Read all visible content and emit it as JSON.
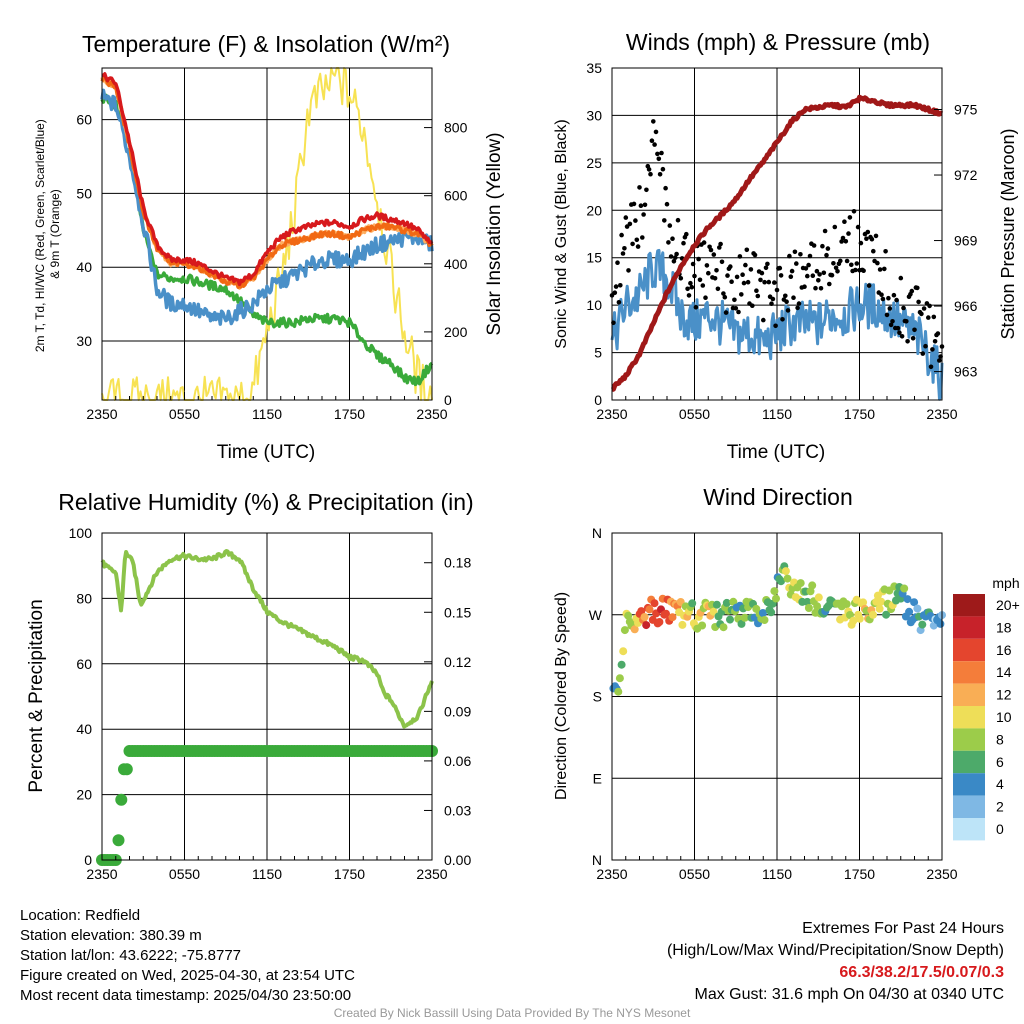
{
  "colors": {
    "temp": "#d7191c",
    "dewpoint": "#3aaa3a",
    "heat_index": "#f16913",
    "nine_m": "#fdae61",
    "windchill": "#4a90c8",
    "solar": "#f7e253",
    "wind": "#4a90c8",
    "gust": "#000000",
    "pressure": "#a01818",
    "rh": "#8cc34a",
    "precip": "#3aaa3a"
  },
  "chart_data": [
    {
      "type": "line",
      "title": "Temperature (F) & Insolation (W/m²)",
      "xlabel": "Time (UTC)",
      "ylabel": "2m T, Td, HI/WC (Red, Green, Scarlet/Blue) & 9m T (Orange)",
      "ylabel_line1": "2m T, Td, HI/WC (Red, Green, Scarlet/Blue)",
      "ylabel_line2": "& 9m T (Orange)",
      "y2label": "Solar Insolation (Yellow)",
      "x_ticks": [
        "2350",
        "0550",
        "1150",
        "1750",
        "2350"
      ],
      "y_ticks": [
        "30",
        "40",
        "50",
        "60"
      ],
      "y2_ticks": [
        "0",
        "200",
        "400",
        "600",
        "800"
      ],
      "ylim": [
        22,
        67
      ],
      "y2lim": [
        0,
        975
      ],
      "x_hours": [
        0,
        1,
        2,
        3,
        4,
        5,
        6,
        7,
        8,
        9,
        10,
        11,
        12,
        13,
        14,
        15,
        16,
        17,
        18,
        19,
        20,
        21,
        22,
        23,
        24
      ],
      "series": [
        {
          "key": "temp",
          "values": [
            66,
            65,
            57,
            48,
            43,
            41,
            41,
            40.5,
            39.5,
            38.5,
            38,
            39,
            42,
            44,
            45,
            45.5,
            46,
            46,
            45.5,
            46.5,
            47,
            46.5,
            46,
            45,
            43
          ]
        },
        {
          "key": "heat_index",
          "values": [
            65.5,
            64.5,
            56.5,
            47.5,
            42.5,
            40.5,
            40.5,
            40,
            39,
            38,
            37.5,
            38.5,
            41,
            43,
            43.5,
            44,
            44.5,
            44.5,
            44,
            45,
            45.5,
            45.5,
            45,
            44.5,
            43
          ]
        },
        {
          "key": "nine_m",
          "values": [
            65.5,
            64.5,
            56.5,
            47.5,
            42.5,
            40.5,
            40.5,
            40,
            39,
            38,
            37.5,
            38.5,
            41,
            43,
            43.5,
            44,
            44.5,
            44.5,
            44,
            45,
            45.5,
            45.5,
            45,
            44.5,
            43
          ]
        },
        {
          "key": "windchill",
          "values": [
            63,
            62,
            55,
            46,
            37,
            35,
            35,
            34,
            33,
            33,
            34,
            35,
            37,
            38,
            39,
            40,
            41,
            41,
            41,
            42,
            43,
            43.5,
            44,
            44,
            43
          ]
        },
        {
          "key": "dewpoint",
          "values": [
            63,
            62,
            57,
            45,
            39,
            38.5,
            38.5,
            38,
            37.5,
            37,
            35.5,
            33.5,
            32.5,
            32.5,
            32.5,
            33,
            33,
            33,
            32.5,
            30,
            28,
            27,
            25,
            24.5,
            27
          ]
        },
        {
          "key": "solar",
          "axis": "y2",
          "values": [
            0,
            0,
            0,
            0,
            0,
            0,
            0,
            0,
            0,
            0,
            0,
            30,
            200,
            350,
            550,
            850,
            900,
            950,
            900,
            800,
            600,
            380,
            200,
            60,
            10
          ]
        }
      ]
    },
    {
      "type": "line",
      "title": "Winds (mph) & Pressure (mb)",
      "xlabel": "Time (UTC)",
      "ylabel": "Sonic Wind & Gust (Blue, Black)",
      "y2label": "Station Pressure (Maroon)",
      "x_ticks": [
        "2350",
        "0550",
        "1150",
        "1750",
        "2350"
      ],
      "y_ticks": [
        "0",
        "5",
        "10",
        "15",
        "20",
        "25",
        "30",
        "35"
      ],
      "y2_ticks": [
        "963",
        "966",
        "969",
        "972",
        "975"
      ],
      "ylim": [
        0,
        35
      ],
      "y2lim": [
        961.7,
        976.9
      ],
      "x_hours": [
        0,
        1,
        2,
        3,
        4,
        5,
        6,
        7,
        8,
        9,
        10,
        11,
        12,
        13,
        14,
        15,
        16,
        17,
        18,
        19,
        20,
        21,
        22,
        23,
        24
      ],
      "series": [
        {
          "key": "wind",
          "name": "Sonic Wind",
          "values": [
            6,
            10,
            11,
            14,
            13,
            9,
            8,
            9,
            8,
            7,
            7,
            6,
            7,
            8,
            8,
            8,
            9,
            9,
            10,
            10,
            9,
            8,
            7,
            5,
            2
          ]
        },
        {
          "key": "gust",
          "name": "Gust",
          "values": [
            11,
            16,
            19,
            27,
            20,
            15,
            13,
            14,
            13,
            12,
            13,
            11,
            11,
            12,
            13,
            14,
            16,
            17,
            16,
            15,
            12,
            10,
            9,
            7,
            4
          ]
        },
        {
          "key": "pressure",
          "axis": "y2",
          "values": [
            962.2,
            962.8,
            963.8,
            965.2,
            966.6,
            967.8,
            968.8,
            969.6,
            970.2,
            970.9,
            971.8,
            972.6,
            973.5,
            974.4,
            975,
            975.1,
            975.2,
            975.1,
            975.5,
            975.4,
            975.2,
            975.2,
            975.2,
            975.0,
            974.8
          ]
        }
      ]
    },
    {
      "type": "line",
      "title": "Relative Humidity (%) & Precipitation (in)",
      "xlabel": "",
      "ylabel": "Percent & Precipitation",
      "x_ticks": [
        "2350",
        "0550",
        "1150",
        "1750",
        "2350"
      ],
      "y_ticks": [
        "0",
        "20",
        "40",
        "60",
        "80",
        "100"
      ],
      "y2_ticks": [
        "0.00",
        "0.03",
        "0.06",
        "0.09",
        "0.12",
        "0.15",
        "0.18"
      ],
      "ylim": [
        0,
        100
      ],
      "y2lim": [
        0,
        0.198
      ],
      "series": [
        {
          "key": "rh",
          "name": "Relative Humidity",
          "x_hours": [
            0,
            0.5,
            1,
            1.4,
            1.7,
            2,
            2.3,
            2.8,
            3.3,
            4,
            5,
            6,
            7,
            8,
            9,
            10,
            11,
            12,
            13,
            14,
            15,
            16,
            17,
            18,
            19,
            20,
            20.5,
            21,
            22,
            23,
            24
          ],
          "values": [
            91,
            89,
            88,
            76,
            94,
            93,
            90,
            78,
            82,
            88,
            92,
            93,
            92,
            92,
            94,
            92,
            83,
            76,
            73,
            71,
            69,
            67,
            65,
            62,
            61,
            57,
            51,
            49,
            41,
            44,
            55
          ]
        },
        {
          "key": "precip",
          "name": "Precipitation",
          "axis": "y2",
          "x_hours": [
            0,
            0.5,
            1,
            1.1,
            1.15,
            1.2,
            1.3,
            1.35,
            1.45,
            1.6,
            1.8,
            2,
            24
          ],
          "values": [
            0,
            0,
            0,
            0.003,
            0.007,
            0.012,
            0.025,
            0.031,
            0.042,
            0.055,
            0.055,
            0.066,
            0.066
          ]
        }
      ]
    },
    {
      "type": "scatter",
      "title": "Wind Direction",
      "ylabel": "Direction (Colored By Speed)",
      "x_ticks": [
        "2350",
        "0550",
        "1150",
        "1750",
        "2350"
      ],
      "y_ticks": [
        "N",
        "E",
        "S",
        "W",
        "N"
      ],
      "ylim": [
        0,
        360
      ],
      "legend_title": "mph",
      "legend_labels": [
        "20+",
        "18",
        "16",
        "14",
        "12",
        "10",
        "8",
        "6",
        "4",
        "2",
        "0"
      ],
      "legend_colors": [
        "#9e1a1a",
        "#c7222a",
        "#e4452e",
        "#f47d3a",
        "#f9ae55",
        "#eede58",
        "#9ccc4a",
        "#4daa6a",
        "#3a89c6",
        "#7fb8e4",
        "#bde4f8"
      ],
      "x_hours": [
        0,
        0.3,
        0.6,
        1,
        1.5,
        2,
        3,
        4,
        5,
        6,
        7,
        8,
        9,
        10,
        11,
        11.5,
        12,
        12.5,
        13,
        14,
        15,
        16,
        17,
        18,
        19,
        20,
        21,
        22,
        23,
        23.5,
        24
      ],
      "directions": [
        180,
        185,
        190,
        260,
        265,
        270,
        275,
        275,
        272,
        270,
        268,
        268,
        270,
        270,
        275,
        285,
        300,
        310,
        300,
        295,
        285,
        275,
        270,
        275,
        280,
        285,
        290,
        270,
        265,
        260,
        255
      ],
      "speeds": [
        4,
        6,
        7,
        9,
        10,
        14,
        17,
        15,
        12,
        8,
        10,
        7,
        6,
        7,
        6,
        5,
        6,
        8,
        9,
        8,
        7,
        6,
        9,
        10,
        9,
        8,
        6,
        5,
        4,
        3,
        2
      ]
    }
  ],
  "info": {
    "location": "Location: Redfield",
    "elevation": "Station elevation: 380.39 m",
    "latlon": "Station lat/lon: 43.6222; -75.8777",
    "created": "Figure created on Wed, 2025-04-30, at 23:54 UTC",
    "recent": "Most recent data timestamp: 2025/04/30 23:50:00"
  },
  "extremes": {
    "title": "Extremes For Past 24 Hours",
    "subtitle": "(High/Low/Max Wind/Precipitation/Snow Depth)",
    "values": "66.3/38.2/17.5/0.07/0.3",
    "max_gust": "Max Gust: 31.6 mph On 04/30 at 0340 UTC"
  },
  "credit": "Created By Nick Bassill Using Data Provided By The NYS Mesonet"
}
